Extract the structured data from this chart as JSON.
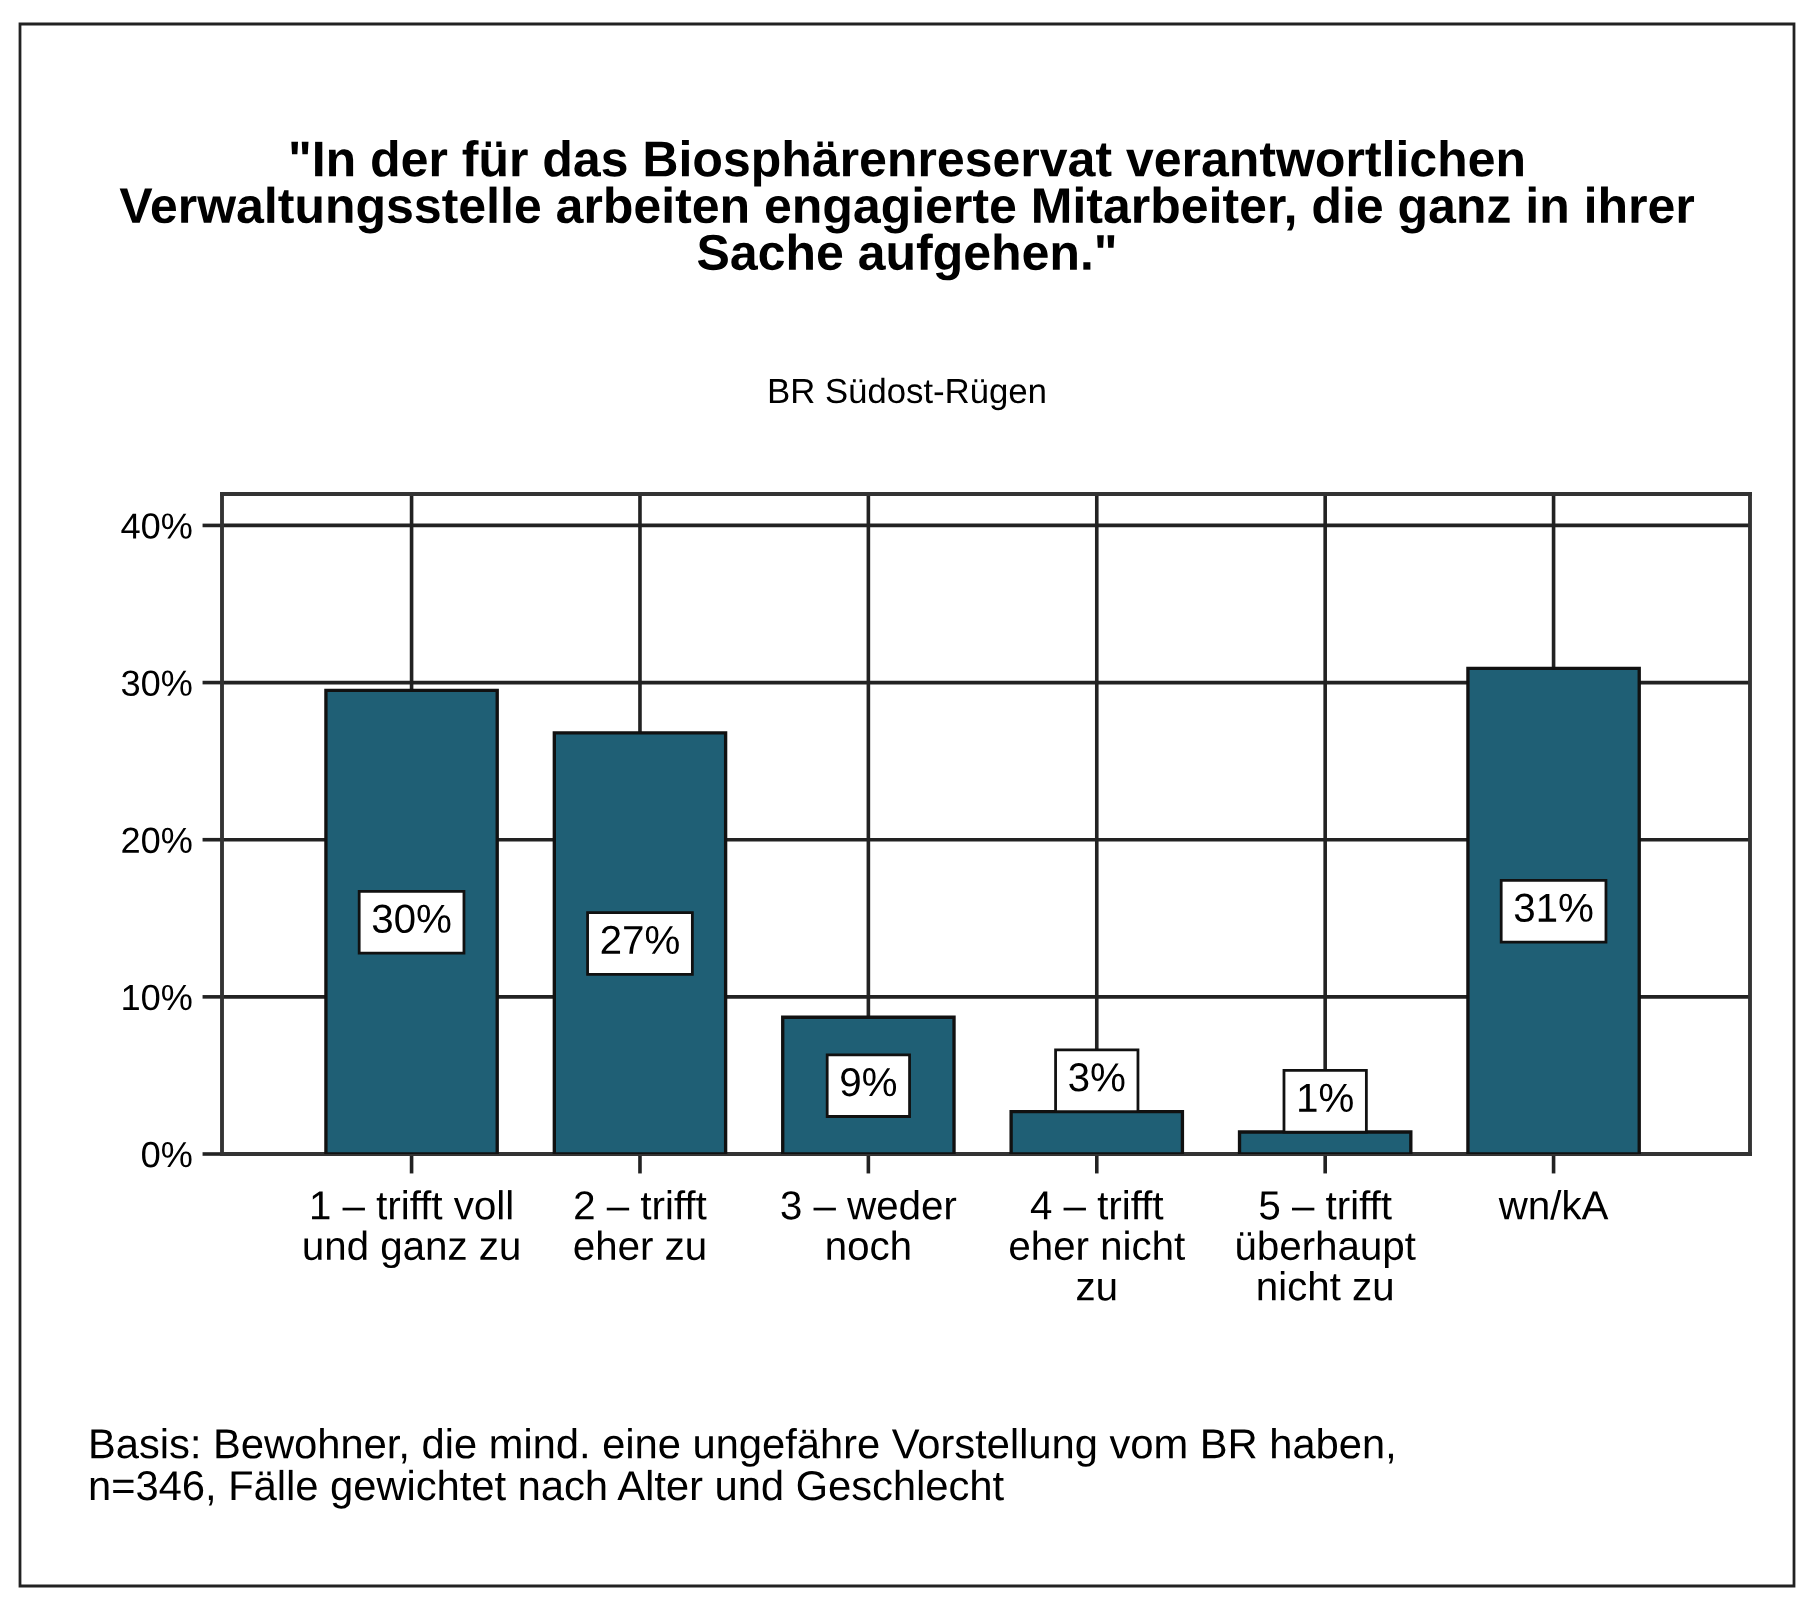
{
  "chart_data": {
    "type": "bar",
    "title": "\"In der für das Biosphärenreservat verantwortlichen\nVerwaltungsstelle arbeiten engagierte Mitarbeiter, die ganz in ihrer\nSache aufgehen.\"",
    "subtitle": "BR Südost-Rügen",
    "categories": [
      "1 – trifft voll\nund ganz zu",
      "2 – trifft\neher zu",
      "3 – weder\nnoch",
      "4 – trifft\neher nicht\nzu",
      "5 – trifft\nüberhaupt\nnicht zu",
      "wn/kA"
    ],
    "values": [
      29.5,
      26.8,
      8.7,
      2.7,
      1.4,
      30.9
    ],
    "value_labels": [
      "30%",
      "27%",
      "9%",
      "3%",
      "1%",
      "31%"
    ],
    "color": "#1f5f75",
    "ylim": [
      0,
      42
    ],
    "yticks": [
      {
        "value": 0,
        "label": "0%"
      },
      {
        "value": 10,
        "label": "10%"
      },
      {
        "value": 20,
        "label": "20%"
      },
      {
        "value": 30,
        "label": "30%"
      },
      {
        "value": 40,
        "label": "40%"
      }
    ],
    "grid": true,
    "annotations": [
      "Basis: Bewohner, die mind. eine ungefähre Vorstellung vom BR haben,\nn=346, Fälle gewichtet nach Alter und Geschlecht"
    ]
  }
}
